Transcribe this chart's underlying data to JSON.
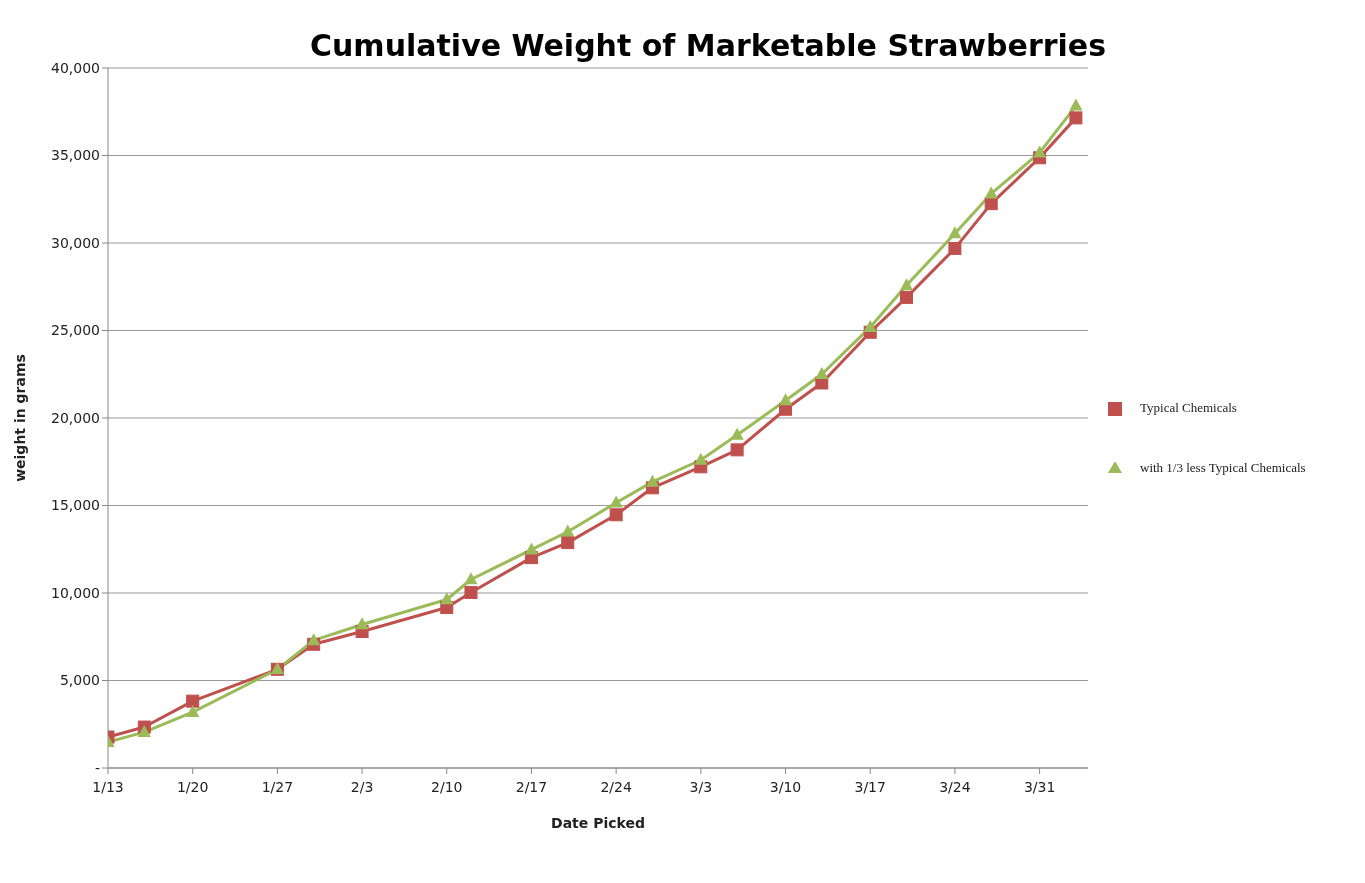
{
  "chart_data": {
    "type": "line",
    "title": "Cumulative Weight of Marketable Strawberries",
    "xlabel": "Date Picked",
    "ylabel": "weight in grams",
    "x": [
      "--01-13",
      "--01-16",
      "--01-20",
      "--01-27",
      "--01-30",
      "--02-03",
      "--02-10",
      "--02-12",
      "--02-17",
      "--02-20",
      "--02-24",
      "--02-27",
      "--03-03",
      "--03-06",
      "--03-10",
      "--03-13",
      "--03-17",
      "--03-20",
      "--03-24",
      "--03-27",
      "--03-31",
      "--04-03"
    ],
    "series": [
      {
        "name": "Typical Chemicals",
        "color": "#c0504d",
        "marker": "square",
        "values": [
          1770,
          2340,
          3820,
          5640,
          7070,
          7800,
          9170,
          10030,
          12020,
          12880,
          14470,
          16010,
          17210,
          18180,
          20500,
          22000,
          24900,
          26890,
          29690,
          32250,
          34870,
          37150
        ]
      },
      {
        "name": "with 1/3 less Typical Chemicals",
        "color": "#9bbb59",
        "marker": "triangle",
        "values": [
          1480,
          2050,
          3190,
          5640,
          7290,
          8200,
          9630,
          10770,
          12480,
          13500,
          15160,
          16350,
          17600,
          19030,
          21000,
          22500,
          25190,
          27580,
          30540,
          32820,
          35160,
          37840
        ]
      }
    ],
    "xlim": [
      "--01-13",
      "--04-04"
    ],
    "xticks": [
      {
        "value": "--01-13",
        "label": "1/13"
      },
      {
        "value": "--01-20",
        "label": "1/20"
      },
      {
        "value": "--01-27",
        "label": "1/27"
      },
      {
        "value": "--02-03",
        "label": "2/3"
      },
      {
        "value": "--02-10",
        "label": "2/10"
      },
      {
        "value": "--02-17",
        "label": "2/17"
      },
      {
        "value": "--02-24",
        "label": "2/24"
      },
      {
        "value": "--03-03",
        "label": "3/3"
      },
      {
        "value": "--03-10",
        "label": "3/10"
      },
      {
        "value": "--03-17",
        "label": "3/17"
      },
      {
        "value": "--03-24",
        "label": "3/24"
      },
      {
        "value": "--03-31",
        "label": "3/31"
      }
    ],
    "ylim": [
      0,
      40000
    ],
    "yticks": [
      {
        "value": 0,
        "label": "-"
      },
      {
        "value": 5000,
        "label": "5,000"
      },
      {
        "value": 10000,
        "label": "10,000"
      },
      {
        "value": 15000,
        "label": "15,000"
      },
      {
        "value": 20000,
        "label": "20,000"
      },
      {
        "value": 25000,
        "label": "25,000"
      },
      {
        "value": 30000,
        "label": "30,000"
      },
      {
        "value": 35000,
        "label": "35,000"
      },
      {
        "value": 40000,
        "label": "40,000"
      }
    ],
    "grid": "y",
    "legend": "right"
  }
}
